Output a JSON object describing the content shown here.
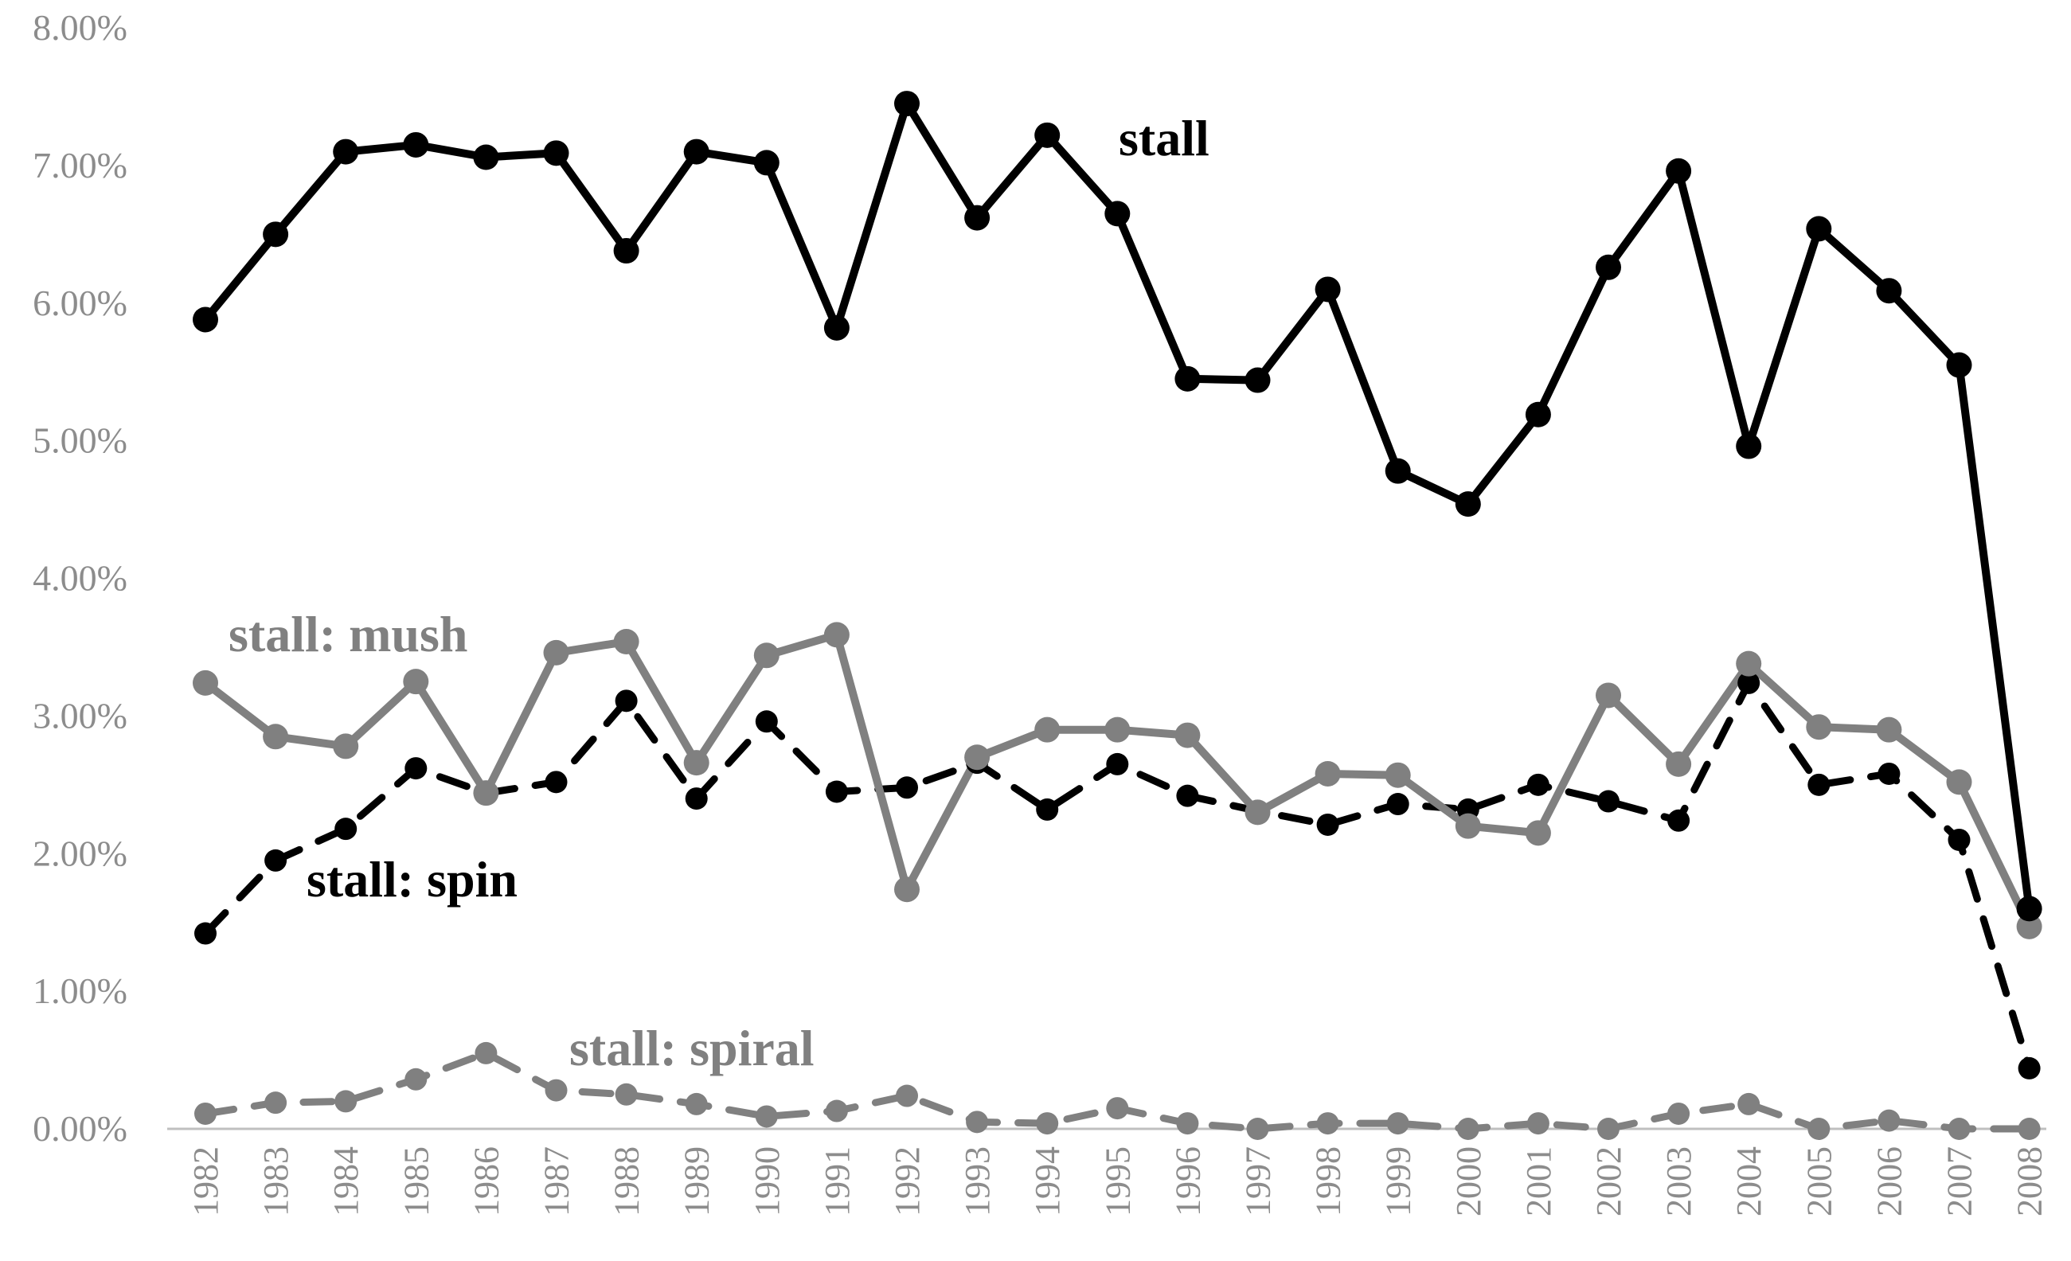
{
  "chart_data": {
    "type": "line",
    "title": "",
    "xlabel": "",
    "ylabel": "",
    "ylim": [
      0,
      0.08
    ],
    "yticks": [
      "0.00%",
      "1.00%",
      "2.00%",
      "3.00%",
      "4.00%",
      "5.00%",
      "6.00%",
      "7.00%",
      "8.00%"
    ],
    "x": [
      "1982",
      "1983",
      "1984",
      "1985",
      "1986",
      "1987",
      "1988",
      "1989",
      "1990",
      "1991",
      "1992",
      "1993",
      "1994",
      "1995",
      "1996",
      "1997",
      "1998",
      "1999",
      "2000",
      "2001",
      "2002",
      "2003",
      "2004",
      "2005",
      "2006",
      "2007",
      "2008"
    ],
    "grid": false,
    "legend": "none",
    "series": [
      {
        "name": "stall",
        "color": "#000000",
        "style": "solid",
        "values": [
          0.0588,
          0.065,
          0.071,
          0.0715,
          0.0706,
          0.0709,
          0.0638,
          0.071,
          0.0702,
          0.0582,
          0.0745,
          0.0662,
          0.0722,
          0.0665,
          0.0545,
          0.0544,
          0.061,
          0.0478,
          0.0454,
          0.0519,
          0.0626,
          0.0696,
          0.0496,
          0.0654,
          0.0609,
          0.0555,
          0.016
        ]
      },
      {
        "name": "stall: mush",
        "color": "#808080",
        "style": "solid",
        "values": [
          0.0324,
          0.0285,
          0.0278,
          0.0325,
          0.0244,
          0.0346,
          0.0354,
          0.0266,
          0.0344,
          0.0359,
          0.0174,
          0.027,
          0.029,
          0.029,
          0.0286,
          0.023,
          0.0258,
          0.0257,
          0.022,
          0.0215,
          0.0315,
          0.0265,
          0.0338,
          0.0292,
          0.029,
          0.0252,
          0.0147
        ]
      },
      {
        "name": "stall: spin",
        "color": "#000000",
        "style": "dashed",
        "values": [
          0.0142,
          0.0195,
          0.0218,
          0.0262,
          0.0244,
          0.0252,
          0.0311,
          0.024,
          0.0296,
          0.0245,
          0.0248,
          0.0266,
          0.0232,
          0.0265,
          0.0242,
          0.0231,
          0.0221,
          0.0236,
          0.0232,
          0.025,
          0.0238,
          0.0224,
          0.0324,
          0.025,
          0.0258,
          0.021,
          0.0044
        ]
      },
      {
        "name": "stall: spiral",
        "color": "#808080",
        "style": "dashed",
        "values": [
          0.0011,
          0.0019,
          0.002,
          0.0036,
          0.0055,
          0.0028,
          0.0025,
          0.0018,
          0.0009,
          0.0013,
          0.0024,
          0.0005,
          0.0004,
          0.0015,
          0.0004,
          0.0,
          0.0004,
          0.0004,
          0.0,
          0.0004,
          0.0,
          0.0011,
          0.0018,
          0.0,
          0.0006,
          0.0,
          0.0
        ]
      }
    ]
  }
}
